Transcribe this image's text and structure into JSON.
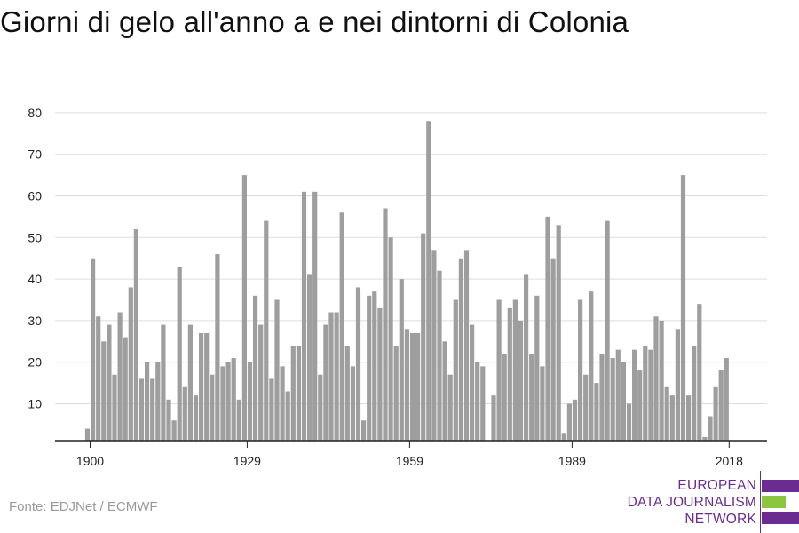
{
  "title": "Giorni di gelo all'anno a e nei dintorni di Colonia",
  "source": "Fonte: EDJNet / ECMWF",
  "logo": {
    "lines": [
      "EUROPEAN",
      "DATA JOURNALISM",
      "NETWORK"
    ],
    "colors": {
      "purple": "#6a2c91",
      "green": "#8cc63f"
    }
  },
  "colors": {
    "bars": "#9e9e9e",
    "grid": "#dddddd",
    "axis": "#222222"
  },
  "chart_data": {
    "type": "bar",
    "xlabel": "",
    "ylabel": "",
    "ylim": [
      1,
      80
    ],
    "yticks": [
      10,
      20,
      30,
      40,
      50,
      60,
      70,
      80
    ],
    "xtick_years": [
      1900,
      1929,
      1959,
      1989,
      2018
    ],
    "grid": true,
    "legend": "none",
    "years": [
      1900,
      1901,
      1902,
      1903,
      1904,
      1905,
      1906,
      1907,
      1908,
      1909,
      1910,
      1911,
      1912,
      1913,
      1914,
      1915,
      1916,
      1917,
      1918,
      1919,
      1920,
      1921,
      1922,
      1923,
      1924,
      1925,
      1926,
      1927,
      1928,
      1929,
      1930,
      1931,
      1932,
      1933,
      1934,
      1935,
      1936,
      1937,
      1938,
      1939,
      1940,
      1941,
      1942,
      1943,
      1944,
      1945,
      1946,
      1947,
      1948,
      1949,
      1950,
      1951,
      1952,
      1953,
      1954,
      1955,
      1956,
      1957,
      1958,
      1959,
      1960,
      1961,
      1962,
      1963,
      1964,
      1965,
      1966,
      1967,
      1968,
      1969,
      1970,
      1971,
      1972,
      1973,
      1974,
      1975,
      1976,
      1977,
      1978,
      1979,
      1980,
      1981,
      1982,
      1983,
      1984,
      1985,
      1986,
      1987,
      1988,
      1989,
      1990,
      1991,
      1992,
      1993,
      1994,
      1995,
      1996,
      1997,
      1998,
      1999,
      2000,
      2001,
      2002,
      2003,
      2004,
      2005,
      2006,
      2007,
      2008,
      2009,
      2010,
      2011,
      2012,
      2013,
      2014,
      2015,
      2016,
      2017,
      2018
    ],
    "values": [
      4,
      45,
      31,
      25,
      29,
      17,
      32,
      26,
      38,
      52,
      16,
      20,
      16,
      20,
      29,
      11,
      6,
      43,
      14,
      29,
      12,
      27,
      27,
      17,
      46,
      19,
      20,
      21,
      11,
      65,
      20,
      36,
      29,
      54,
      16,
      35,
      19,
      13,
      24,
      24,
      61,
      41,
      61,
      17,
      29,
      32,
      32,
      56,
      24,
      19,
      38,
      6,
      36,
      37,
      33,
      57,
      50,
      24,
      40,
      28,
      27,
      27,
      51,
      78,
      47,
      42,
      25,
      17,
      35,
      45,
      47,
      29,
      20,
      19,
      null,
      12,
      35,
      22,
      33,
      35,
      30,
      41,
      22,
      36,
      19,
      55,
      45,
      53,
      3,
      10,
      11,
      35,
      17,
      37,
      15,
      22,
      54,
      21,
      23,
      20,
      10,
      23,
      18,
      24,
      23,
      31,
      30,
      14,
      12,
      28,
      65,
      12,
      24,
      34,
      2,
      7,
      14,
      18,
      21
    ]
  }
}
